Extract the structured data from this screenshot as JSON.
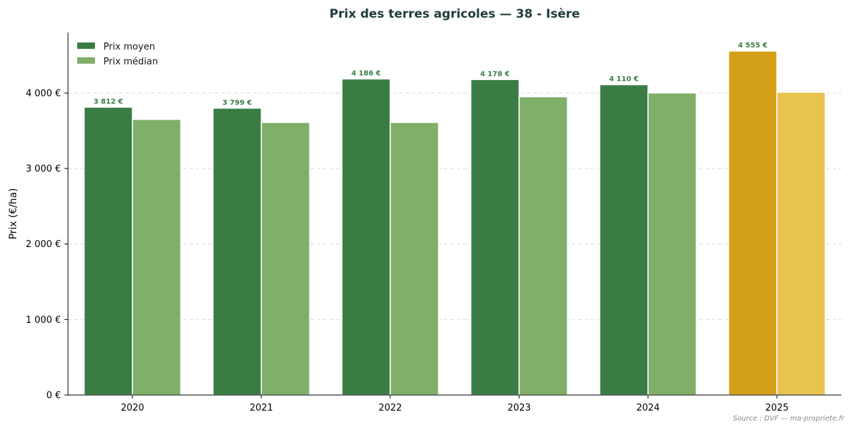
{
  "chart_data": {
    "type": "bar",
    "title": "Prix des terres agricoles — 38 - Isère",
    "xlabel": "",
    "ylabel": "Prix (€/ha)",
    "ylim": [
      0,
      4800
    ],
    "yticks": [
      0,
      1000,
      2000,
      3000,
      4000
    ],
    "ytick_labels": [
      "0 €",
      "1 000 €",
      "2 000 €",
      "3 000 €",
      "4 000 €"
    ],
    "categories": [
      "2020",
      "2021",
      "2022",
      "2023",
      "2024",
      "2025"
    ],
    "series": [
      {
        "name": "Prix moyen",
        "values": [
          3812,
          3799,
          4186,
          4178,
          4110,
          4555
        ],
        "labels": [
          "3 812 €",
          "3 799 €",
          "4 186 €",
          "4 178 €",
          "4 110 €",
          "4 555 €"
        ]
      },
      {
        "name": "Prix médian",
        "values": [
          3650,
          3610,
          3610,
          3950,
          4000,
          4010
        ]
      }
    ],
    "highlight_category": "2025",
    "colors": {
      "mean": "#3a7d44",
      "median": "#7faf69",
      "highlight_mean": "#d4a017",
      "highlight_median": "#e8c350",
      "label": "#3a7d44",
      "grid": "#d9d9d9"
    },
    "grid": true,
    "grid_axis": "y",
    "legend_position": "top-left",
    "source": "Source : DVF — ma-propriete.fr"
  }
}
